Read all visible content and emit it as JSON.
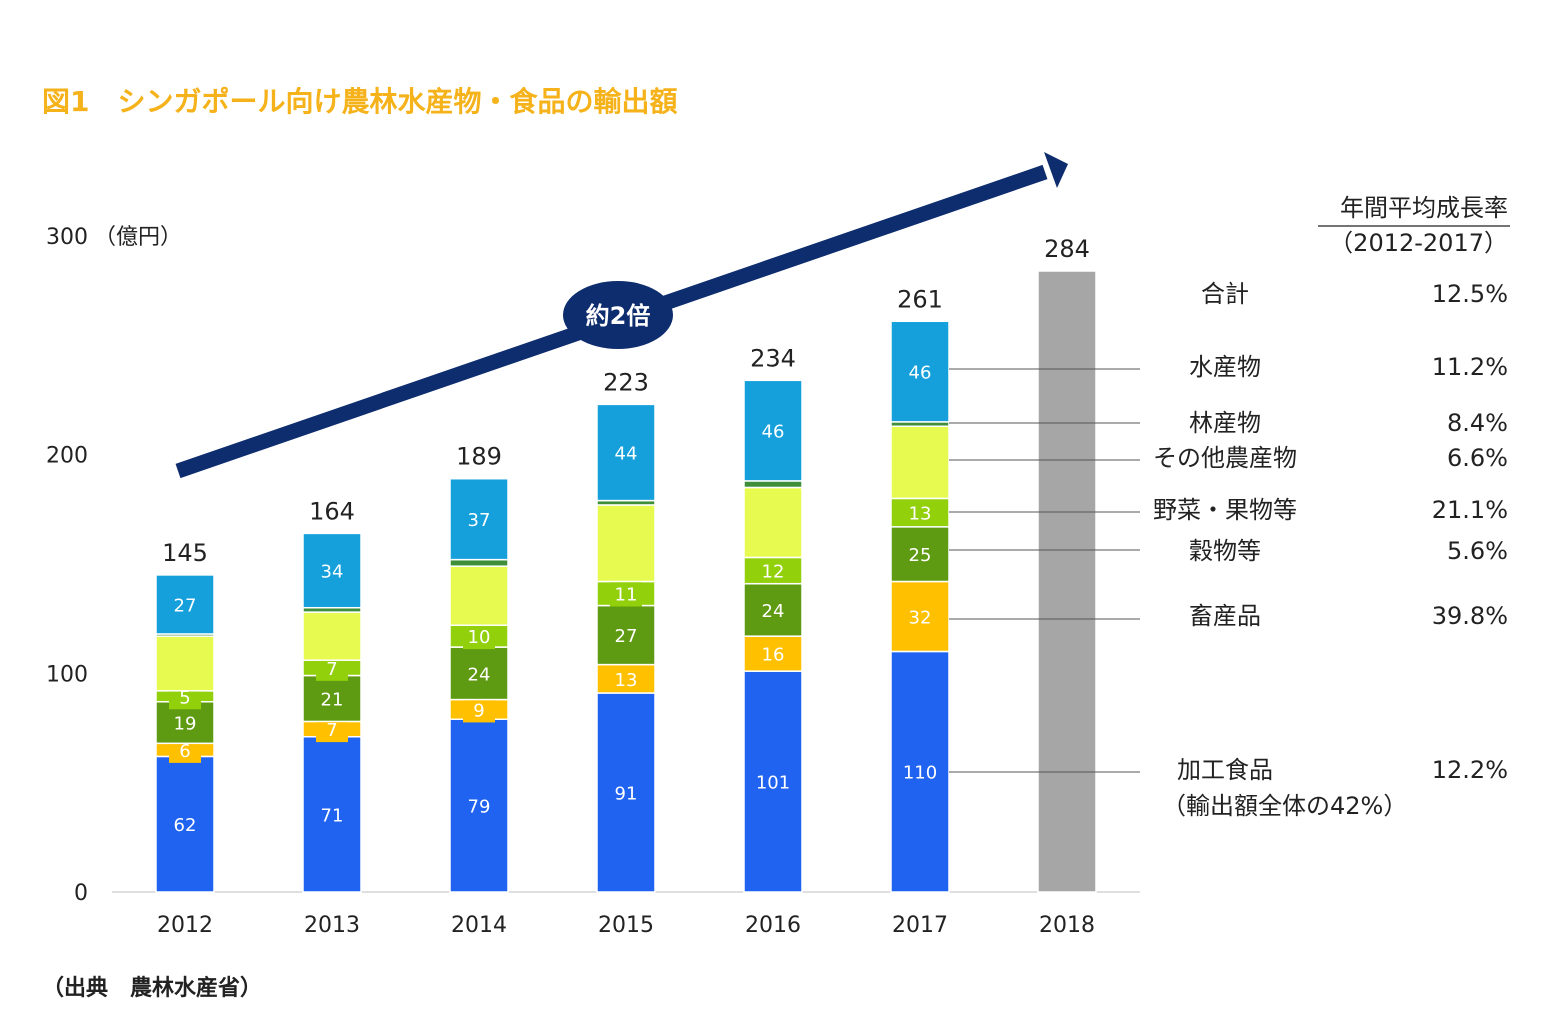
{
  "header": {
    "title": "図1　シンガポール向け農林水産物・食品の輸出額",
    "source": "（出典　農林水産省）"
  },
  "arrow_label": "約2倍",
  "chart_data": {
    "type": "bar",
    "stacked": true,
    "categories": [
      "2012",
      "2013",
      "2014",
      "2015",
      "2016",
      "2017",
      "2018"
    ],
    "y_unit_label": "（億円）",
    "ylim": [
      0,
      300
    ],
    "yticks": [
      0,
      100,
      200,
      300
    ],
    "totals": [
      145,
      164,
      189,
      223,
      234,
      261,
      284
    ],
    "series": [
      {
        "name": "加工食品",
        "color": "#1F63F0",
        "values": [
          62,
          71,
          79,
          91,
          101,
          110,
          null
        ],
        "labels": [
          "62",
          "71",
          "79",
          "91",
          "101",
          "110",
          null
        ]
      },
      {
        "name": "畜産品",
        "color": "#FFC000",
        "values": [
          6,
          7,
          9,
          13,
          16,
          32,
          null
        ],
        "labels": [
          "6",
          "7",
          "9",
          "13",
          "16",
          "32",
          null
        ]
      },
      {
        "name": "穀物等",
        "color": "#5E9A12",
        "values": [
          19,
          21,
          24,
          27,
          24,
          25,
          null
        ],
        "labels": [
          "19",
          "21",
          "24",
          "27",
          "24",
          "25",
          null
        ]
      },
      {
        "name": "野菜・果物等",
        "color": "#92D00C",
        "values": [
          5,
          7,
          10,
          11,
          12,
          13,
          null
        ],
        "labels": [
          "5",
          "7",
          "10",
          "11",
          "12",
          "13",
          null
        ]
      },
      {
        "name": "その他農産物",
        "color": "#E6FA50",
        "values": [
          25,
          22,
          27,
          35,
          32,
          33,
          null
        ],
        "labels": [
          null,
          null,
          null,
          null,
          null,
          null,
          null
        ]
      },
      {
        "name": "林産物",
        "color": "#3E8E3A",
        "values": [
          1,
          2,
          3,
          2,
          3,
          2,
          null
        ],
        "labels": [
          null,
          null,
          null,
          null,
          null,
          null,
          null
        ]
      },
      {
        "name": "水産物",
        "color": "#15A0DC",
        "values": [
          27,
          34,
          37,
          44,
          46,
          46,
          null
        ],
        "labels": [
          "27",
          "34",
          "37",
          "44",
          "46",
          "46",
          null
        ]
      },
      {
        "name": "合計",
        "color": "#A6A6A6",
        "values": [
          null,
          null,
          null,
          null,
          null,
          null,
          284
        ],
        "labels": [
          null,
          null,
          null,
          null,
          null,
          null,
          null
        ]
      }
    ],
    "growth_table": {
      "header": "年間平均成長率",
      "period": "（2012-2017）",
      "rows": [
        {
          "name": "合計",
          "rate": "12.5%"
        },
        {
          "name": "水産物",
          "rate": "11.2%"
        },
        {
          "name": "林産物",
          "rate": "8.4%"
        },
        {
          "name": "その他農産物",
          "rate": "6.6%"
        },
        {
          "name": "野菜・果物等",
          "rate": "21.1%"
        },
        {
          "name": "穀物等",
          "rate": "5.6%"
        },
        {
          "name": "畜産品",
          "rate": "39.8%"
        },
        {
          "name": "加工食品",
          "rate": "12.2%",
          "note": "（輸出額全体の42%）"
        }
      ]
    }
  },
  "colors": {
    "title": "#F5B21A",
    "arrow": "#0E2D6E",
    "grid": "#BFBFBF"
  }
}
